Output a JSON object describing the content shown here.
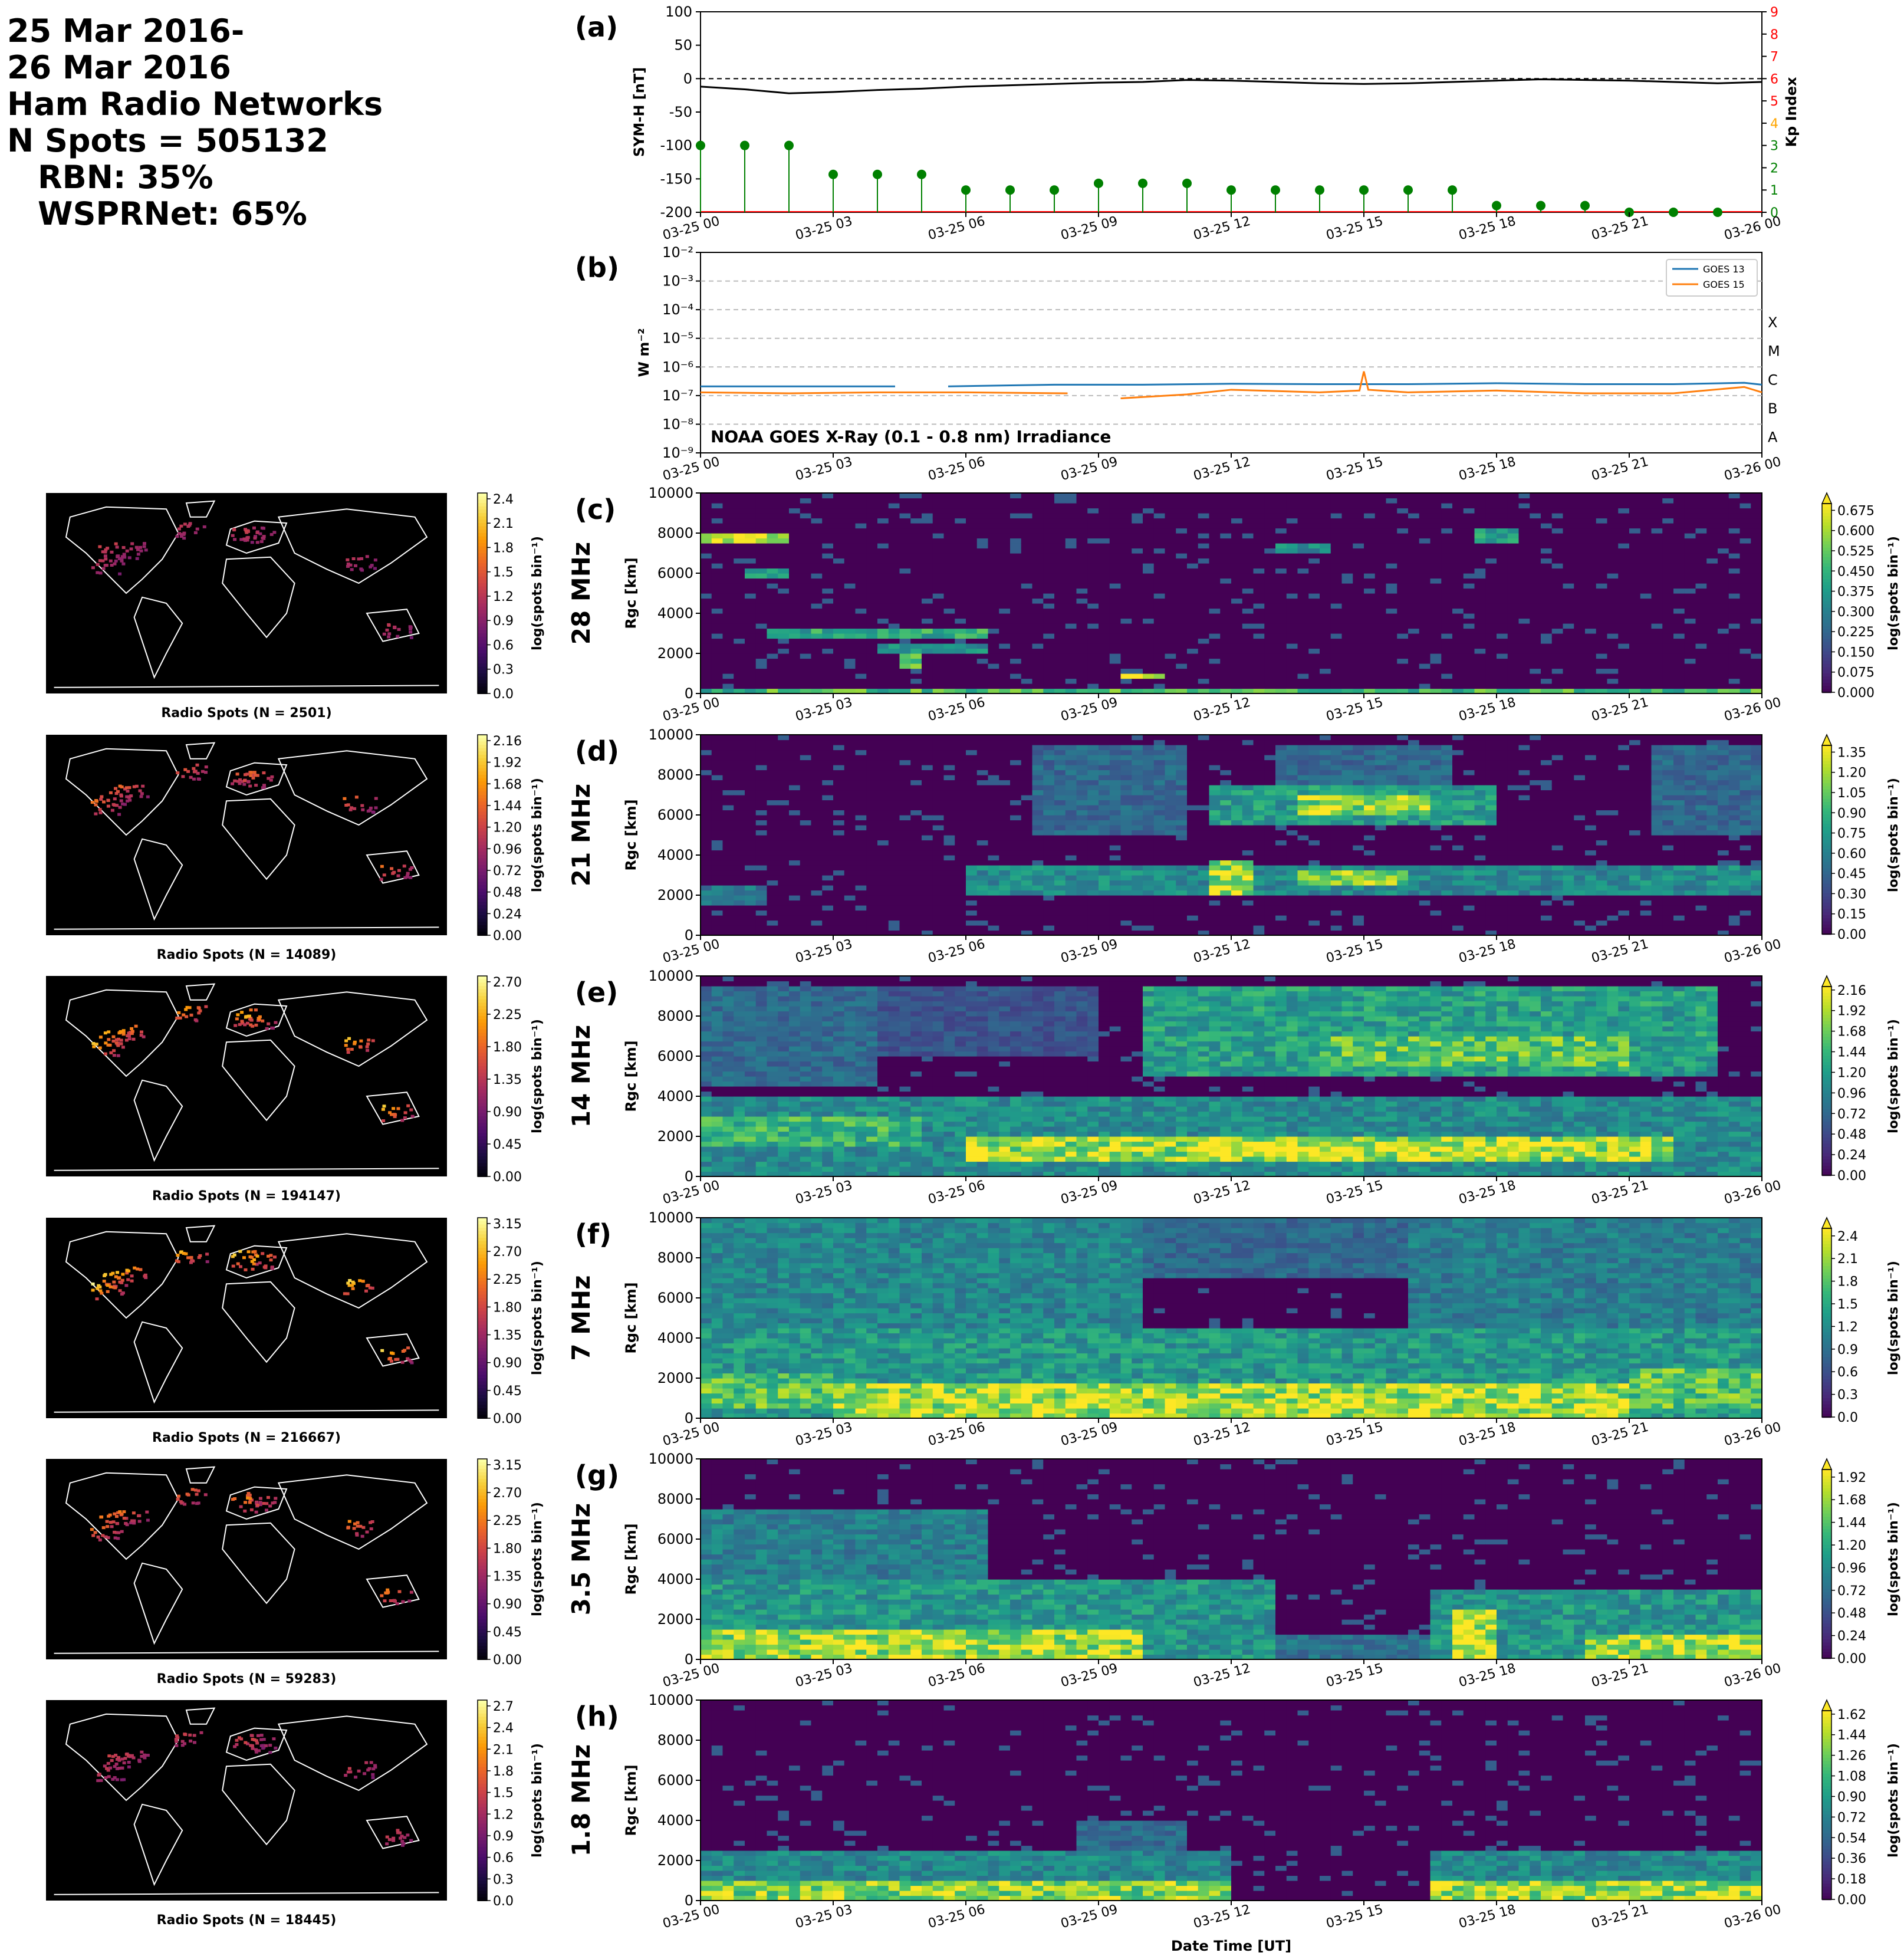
{
  "summary": {
    "date_start": "25 Mar 2016-",
    "date_end": "26 Mar 2016",
    "network": "Ham Radio Networks",
    "n_spots": "N Spots = 505132",
    "rbn": "RBN: 35%",
    "wsprnet": "WSPRNet: 65%"
  },
  "time_ticks": [
    "03-25 00",
    "03-25 03",
    "03-25 06",
    "03-25 09",
    "03-25 12",
    "03-25 15",
    "03-25 18",
    "03-25 21",
    "03-26 00"
  ],
  "xlabel": "Date Time [UT]",
  "chart_data": [
    {
      "type": "line",
      "panel": "(a)",
      "ylabel": "SYM-H [nT]",
      "ylim": [
        -200,
        100
      ],
      "yticks": [
        100,
        50,
        0,
        -50,
        -100,
        -150,
        -200
      ],
      "y2label": "Kp Index",
      "y2lim": [
        0,
        9
      ],
      "y2ticks": [
        0,
        1,
        2,
        3,
        4,
        5,
        6,
        7,
        8,
        9
      ],
      "y2tick_colors": [
        "#008000",
        "#008000",
        "#008000",
        "#008000",
        "#ffa500",
        "#ff0000",
        "#ff0000",
        "#ff0000",
        "#ff0000",
        "#ff0000"
      ],
      "reference_line": 0,
      "symh": {
        "x": [
          0,
          1,
          2,
          3,
          4,
          5,
          6,
          7,
          8,
          9,
          10,
          11,
          12,
          13,
          14,
          15,
          16,
          17,
          18,
          19,
          20,
          21,
          22,
          23,
          24
        ],
        "y": [
          -12,
          -16,
          -22,
          -20,
          -17,
          -15,
          -12,
          -10,
          -8,
          -6,
          -5,
          -2,
          -3,
          -5,
          -7,
          -8,
          -7,
          -5,
          -3,
          -1,
          -2,
          -3,
          -5,
          -7,
          -5
        ]
      },
      "kp": {
        "x": [
          0,
          1,
          2,
          3,
          4,
          5,
          6,
          7,
          8,
          9,
          10,
          11,
          12,
          13,
          14,
          15,
          16,
          17,
          18,
          19,
          20,
          21,
          22,
          23
        ],
        "y": [
          3,
          3,
          3,
          1.7,
          1.7,
          1.7,
          1,
          1,
          1,
          1.3,
          1.3,
          1.3,
          1,
          1,
          1,
          1,
          1,
          1,
          0.3,
          0.3,
          0.3,
          0,
          0,
          0
        ],
        "color": "#008000"
      }
    },
    {
      "type": "line",
      "panel": "(b)",
      "ylabel": "W m⁻²",
      "yscale": "log",
      "ylim": [
        1e-09,
        0.01
      ],
      "yticks": [
        "10⁻²",
        "10⁻³",
        "10⁻⁴",
        "10⁻⁵",
        "10⁻⁶",
        "10⁻⁷",
        "10⁻⁸",
        "10⁻⁹"
      ],
      "flare_classes": [
        "X",
        "M",
        "C",
        "B",
        "A"
      ],
      "annotation": "NOAA GOES X-Ray (0.1 - 0.8 nm) Irradiance",
      "series": [
        {
          "name": "GOES 13",
          "color": "#1f77b4",
          "x": [
            0,
            2,
            4,
            4.4,
            5.6,
            8,
            10,
            12,
            14,
            15,
            16,
            18,
            20,
            22,
            23.6,
            24
          ],
          "y": [
            2.1e-07,
            2.1e-07,
            2.1e-07,
            2.1e-07,
            2.1e-07,
            2.4e-07,
            2.4e-07,
            2.6e-07,
            2.5e-07,
            2.5e-07,
            2.5e-07,
            2.7e-07,
            2.5e-07,
            2.5e-07,
            2.8e-07,
            2.4e-07
          ],
          "gap": [
            4.4,
            5.6
          ]
        },
        {
          "name": "GOES 15",
          "color": "#ff7f0e",
          "x": [
            0,
            2,
            4,
            6,
            8.3,
            9.5,
            11,
            12,
            14,
            14.9,
            15,
            15.1,
            16,
            18,
            20,
            22,
            23.6,
            24
          ],
          "y": [
            1.3e-07,
            1.2e-07,
            1.3e-07,
            1.3e-07,
            1.2e-07,
            8e-08,
            1.1e-07,
            1.6e-07,
            1.3e-07,
            1.5e-07,
            7e-07,
            1.6e-07,
            1.3e-07,
            1.5e-07,
            1.2e-07,
            1.2e-07,
            2e-07,
            1.3e-07
          ],
          "gap": [
            8.3,
            9.5
          ]
        }
      ]
    },
    {
      "type": "heatmap",
      "panel": "(c)",
      "band": "28 MHz",
      "ylabel": "Rgc [km]",
      "ylim": [
        0,
        10000
      ],
      "yticks": [
        0,
        2000,
        4000,
        6000,
        8000,
        10000
      ],
      "cbar_label": "log(spots bin⁻¹)",
      "cbar_ticks": [
        "0.000",
        "0.075",
        "0.150",
        "0.225",
        "0.300",
        "0.375",
        "0.450",
        "0.525",
        "0.600",
        "0.675"
      ],
      "cbar_max": 0.7,
      "features": [
        {
          "t": [
            0,
            2
          ],
          "r": [
            7500,
            8000
          ],
          "v": 0.65
        },
        {
          "t": [
            1,
            2
          ],
          "r": [
            5800,
            6200
          ],
          "v": 0.45
        },
        {
          "t": [
            1.5,
            6.5
          ],
          "r": [
            2800,
            3200
          ],
          "v": 0.45
        },
        {
          "t": [
            4,
            6.5
          ],
          "r": [
            2000,
            2400
          ],
          "v": 0.35
        },
        {
          "t": [
            4.4,
            5
          ],
          "r": [
            1300,
            2000
          ],
          "v": 0.6
        },
        {
          "t": [
            9.5,
            10.5
          ],
          "r": [
            700,
            1100
          ],
          "v": 0.68
        },
        {
          "t": [
            13,
            14.2
          ],
          "r": [
            7000,
            7400
          ],
          "v": 0.35
        },
        {
          "t": [
            17.5,
            18.5
          ],
          "r": [
            7500,
            8300
          ],
          "v": 0.4
        },
        {
          "t": [
            0,
            24
          ],
          "r": [
            0,
            300
          ],
          "v": 0.5
        }
      ],
      "map_cbar_ticks": [
        "0.0",
        "0.3",
        "0.6",
        "0.9",
        "1.2",
        "1.5",
        "1.8",
        "2.1",
        "2.4"
      ],
      "map_caption": "Radio Spots (N = 2501)",
      "map_intensity": 0.35
    },
    {
      "type": "heatmap",
      "panel": "(d)",
      "band": "21 MHz",
      "ylabel": "Rgc [km]",
      "ylim": [
        0,
        10000
      ],
      "yticks": [
        0,
        2000,
        4000,
        6000,
        8000,
        10000
      ],
      "cbar_label": "log(spots bin⁻¹)",
      "cbar_ticks": [
        "0.00",
        "0.15",
        "0.30",
        "0.45",
        "0.60",
        "0.75",
        "0.90",
        "1.05",
        "1.20",
        "1.35"
      ],
      "cbar_max": 1.4,
      "features": [
        {
          "t": [
            0,
            1.5
          ],
          "r": [
            1600,
            2600
          ],
          "v": 0.6
        },
        {
          "t": [
            6,
            24
          ],
          "r": [
            2000,
            3500
          ],
          "v": 0.7
        },
        {
          "t": [
            11.5,
            12.5
          ],
          "r": [
            2000,
            3800
          ],
          "v": 1.3
        },
        {
          "t": [
            13.5,
            16
          ],
          "r": [
            2500,
            3200
          ],
          "v": 1.2
        },
        {
          "t": [
            11.5,
            18
          ],
          "r": [
            5500,
            7500
          ],
          "v": 0.8
        },
        {
          "t": [
            13.5,
            16.5
          ],
          "r": [
            6000,
            7000
          ],
          "v": 1.25
        },
        {
          "t": [
            7.5,
            11
          ],
          "r": [
            5000,
            9500
          ],
          "v": 0.5
        },
        {
          "t": [
            13,
            17
          ],
          "r": [
            7500,
            9500
          ],
          "v": 0.5
        },
        {
          "t": [
            21.5,
            24
          ],
          "r": [
            5000,
            9500
          ],
          "v": 0.5
        }
      ],
      "map_cbar_ticks": [
        "0.00",
        "0.24",
        "0.48",
        "0.72",
        "0.96",
        "1.20",
        "1.44",
        "1.68",
        "1.92",
        "2.16"
      ],
      "map_caption": "Radio Spots (N = 14089)",
      "map_intensity": 0.6
    },
    {
      "type": "heatmap",
      "panel": "(e)",
      "band": "14 MHz",
      "ylabel": "Rgc [km]",
      "ylim": [
        0,
        10000
      ],
      "yticks": [
        0,
        2000,
        4000,
        6000,
        8000,
        10000
      ],
      "cbar_label": "log(spots bin⁻¹)",
      "cbar_ticks": [
        "0.00",
        "0.24",
        "0.48",
        "0.72",
        "0.96",
        "1.20",
        "1.44",
        "1.68",
        "1.92",
        "2.16"
      ],
      "cbar_max": 2.2,
      "features": [
        {
          "t": [
            0,
            24
          ],
          "r": [
            0,
            4000
          ],
          "v": 1.1
        },
        {
          "t": [
            6,
            22
          ],
          "r": [
            800,
            2000
          ],
          "v": 2.0
        },
        {
          "t": [
            11,
            19
          ],
          "r": [
            1000,
            1800
          ],
          "v": 2.2
        },
        {
          "t": [
            0,
            5
          ],
          "r": [
            1500,
            3000
          ],
          "v": 1.5
        },
        {
          "t": [
            10,
            23
          ],
          "r": [
            5000,
            9500
          ],
          "v": 1.3
        },
        {
          "t": [
            14,
            21
          ],
          "r": [
            5500,
            7000
          ],
          "v": 1.7
        },
        {
          "t": [
            0,
            4
          ],
          "r": [
            4500,
            9500
          ],
          "v": 0.8
        },
        {
          "t": [
            4,
            9
          ],
          "r": [
            6000,
            9500
          ],
          "v": 0.6
        }
      ],
      "map_cbar_ticks": [
        "0.00",
        "0.45",
        "0.90",
        "1.35",
        "1.80",
        "2.25",
        "2.70"
      ],
      "map_caption": "Radio Spots (N = 194147)",
      "map_intensity": 0.9
    },
    {
      "type": "heatmap",
      "panel": "(f)",
      "band": "7 MHz",
      "ylabel": "Rgc [km]",
      "ylim": [
        0,
        10000
      ],
      "yticks": [
        0,
        2000,
        4000,
        6000,
        8000,
        10000
      ],
      "cbar_label": "log(spots bin⁻¹)",
      "cbar_ticks": [
        "0.0",
        "0.3",
        "0.6",
        "0.9",
        "1.2",
        "1.5",
        "1.8",
        "2.1",
        "2.4"
      ],
      "cbar_max": 2.5,
      "features": [
        {
          "t": [
            0,
            24
          ],
          "r": [
            0,
            4500
          ],
          "v": 1.4
        },
        {
          "t": [
            3,
            21
          ],
          "r": [
            0,
            1800
          ],
          "v": 2.3
        },
        {
          "t": [
            0,
            3
          ],
          "r": [
            500,
            2200
          ],
          "v": 1.9
        },
        {
          "t": [
            21,
            24
          ],
          "r": [
            500,
            2500
          ],
          "v": 1.9
        },
        {
          "t": [
            0,
            10
          ],
          "r": [
            4500,
            10000
          ],
          "v": 1.2
        },
        {
          "t": [
            16,
            24
          ],
          "r": [
            4500,
            10000
          ],
          "v": 1.1
        },
        {
          "t": [
            10,
            16
          ],
          "r": [
            7000,
            10000
          ],
          "v": 0.9
        }
      ],
      "map_cbar_ticks": [
        "0.00",
        "0.45",
        "0.90",
        "1.35",
        "1.80",
        "2.25",
        "2.70",
        "3.15"
      ],
      "map_caption": "Radio Spots (N = 216667)",
      "map_intensity": 1.0
    },
    {
      "type": "heatmap",
      "panel": "(g)",
      "band": "3.5 MHz",
      "ylabel": "Rgc [km]",
      "ylim": [
        0,
        10000
      ],
      "yticks": [
        0,
        2000,
        4000,
        6000,
        8000,
        10000
      ],
      "cbar_label": "log(spots bin⁻¹)",
      "cbar_ticks": [
        "0.00",
        "0.24",
        "0.48",
        "0.72",
        "0.96",
        "1.20",
        "1.44",
        "1.68",
        "1.92"
      ],
      "cbar_max": 2.0,
      "features": [
        {
          "t": [
            0,
            13
          ],
          "r": [
            0,
            4000
          ],
          "v": 1.1
        },
        {
          "t": [
            0,
            10
          ],
          "r": [
            0,
            1500
          ],
          "v": 1.8
        },
        {
          "t": [
            0,
            6.5
          ],
          "r": [
            4000,
            7500
          ],
          "v": 0.9
        },
        {
          "t": [
            16.5,
            24
          ],
          "r": [
            0,
            3500
          ],
          "v": 1.1
        },
        {
          "t": [
            17,
            18
          ],
          "r": [
            0,
            2500
          ],
          "v": 1.9
        },
        {
          "t": [
            20,
            24
          ],
          "r": [
            0,
            1200
          ],
          "v": 1.8
        },
        {
          "t": [
            10,
            16.5
          ],
          "r": [
            0,
            1200
          ],
          "v": 0.8
        }
      ],
      "map_cbar_ticks": [
        "0.00",
        "0.45",
        "0.90",
        "1.35",
        "1.80",
        "2.25",
        "2.70",
        "3.15"
      ],
      "map_caption": "Radio Spots (N = 59283)",
      "map_intensity": 0.7
    },
    {
      "type": "heatmap",
      "panel": "(h)",
      "band": "1.8 MHz",
      "ylabel": "Rgc [km]",
      "ylim": [
        0,
        10000
      ],
      "yticks": [
        0,
        2000,
        4000,
        6000,
        8000,
        10000
      ],
      "cbar_label": "log(spots bin⁻¹)",
      "cbar_ticks": [
        "0.00",
        "0.18",
        "0.36",
        "0.54",
        "0.72",
        "0.90",
        "1.08",
        "1.26",
        "1.44",
        "1.62"
      ],
      "cbar_max": 1.65,
      "features": [
        {
          "t": [
            0,
            12
          ],
          "r": [
            0,
            2500
          ],
          "v": 0.8
        },
        {
          "t": [
            0,
            12
          ],
          "r": [
            0,
            1000
          ],
          "v": 1.4
        },
        {
          "t": [
            16.5,
            24
          ],
          "r": [
            0,
            2500
          ],
          "v": 0.8
        },
        {
          "t": [
            16.5,
            24
          ],
          "r": [
            0,
            1000
          ],
          "v": 1.5
        },
        {
          "t": [
            8.5,
            11
          ],
          "r": [
            2000,
            4000
          ],
          "v": 0.6
        }
      ],
      "map_cbar_ticks": [
        "0.0",
        "0.3",
        "0.6",
        "0.9",
        "1.2",
        "1.5",
        "1.8",
        "2.1",
        "2.4",
        "2.7"
      ],
      "map_caption": "Radio Spots (N = 18445)",
      "map_intensity": 0.45
    }
  ]
}
